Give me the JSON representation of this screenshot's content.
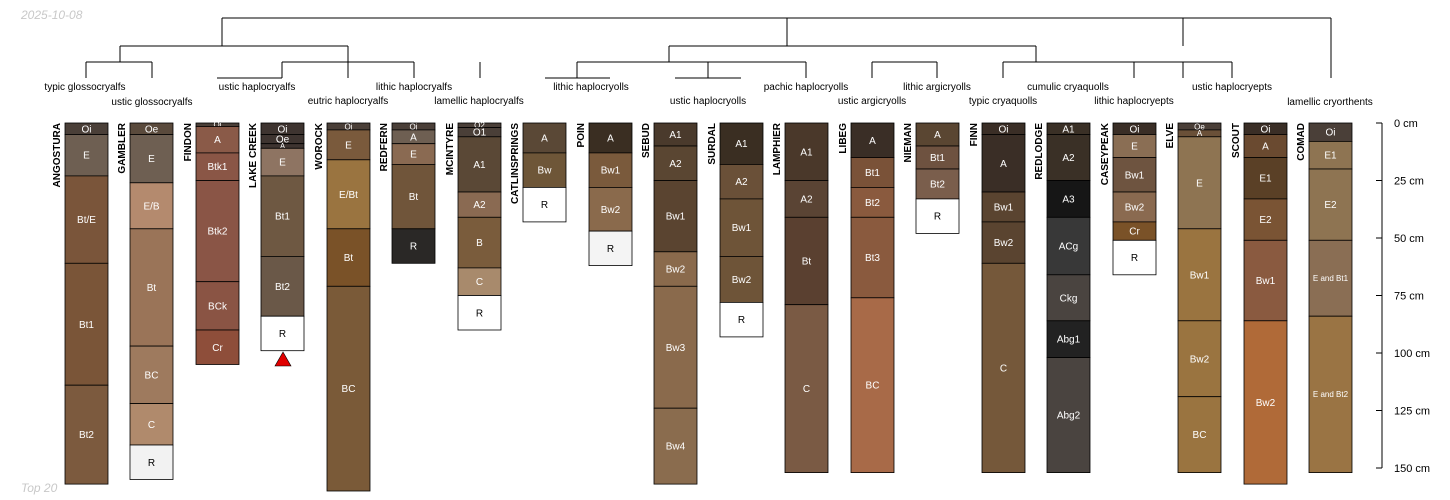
{
  "header": {
    "date": "2025-10-08"
  },
  "footer": {
    "caption": "Top 20"
  },
  "colors": {
    "line": "#000000",
    "marker": "#e00000"
  },
  "depth_axis": {
    "unit": "cm",
    "max": 150,
    "ticks": [
      {
        "value": 0,
        "label": "0 cm"
      },
      {
        "value": 25,
        "label": "25 cm"
      },
      {
        "value": 50,
        "label": "50 cm"
      },
      {
        "value": 75,
        "label": "75 cm"
      },
      {
        "value": 100,
        "label": "100 cm"
      },
      {
        "value": 125,
        "label": "125 cm"
      },
      {
        "value": 150,
        "label": "150 cm"
      }
    ]
  },
  "taxa": [
    {
      "label": "typic glossocryalfs"
    },
    {
      "label": "ustic glossocryalfs"
    },
    {
      "label": "ustic haplocryalfs"
    },
    {
      "label": "eutric haplocryalfs"
    },
    {
      "label": "lithic haplocryalfs"
    },
    {
      "label": "lamellic haplocryalfs"
    },
    {
      "label": "lithic haplocryolls"
    },
    {
      "label": "ustic haplocryolls"
    },
    {
      "label": "pachic haplocryolls"
    },
    {
      "label": "ustic argicryolls"
    },
    {
      "label": "lithic argicryolls"
    },
    {
      "label": "typic cryaquolls"
    },
    {
      "label": "cumulic cryaquolls"
    },
    {
      "label": "lithic haplocryepts"
    },
    {
      "label": "ustic haplocryepts"
    },
    {
      "label": "lamellic cryorthents"
    }
  ],
  "profiles": [
    {
      "name": "ANGOSTURA",
      "horizons": [
        {
          "name": "Oi",
          "top": 0,
          "bottom": 5,
          "color": "#4a3f38"
        },
        {
          "name": "E",
          "top": 5,
          "bottom": 23,
          "color": "#6e5f52"
        },
        {
          "name": "Bt/E",
          "top": 23,
          "bottom": 61,
          "color": "#7a553a"
        },
        {
          "name": "Bt1",
          "top": 61,
          "bottom": 114,
          "color": "#7a5538"
        },
        {
          "name": "Bt2",
          "top": 114,
          "bottom": 157,
          "color": "#7c5a3e"
        }
      ]
    },
    {
      "name": "GAMBLER",
      "horizons": [
        {
          "name": "Oe",
          "top": 0,
          "bottom": 5,
          "color": "#5a4a3c"
        },
        {
          "name": "E",
          "top": 5,
          "bottom": 26,
          "color": "#6e5f52"
        },
        {
          "name": "E/B",
          "top": 26,
          "bottom": 46,
          "color": "#b48a6e"
        },
        {
          "name": "Bt",
          "top": 46,
          "bottom": 97,
          "color": "#9a7458"
        },
        {
          "name": "BC",
          "top": 97,
          "bottom": 122,
          "color": "#9e7a5e"
        },
        {
          "name": "C",
          "top": 122,
          "bottom": 140,
          "color": "#b08a6c"
        },
        {
          "name": "R",
          "top": 140,
          "bottom": 155,
          "color": "#f2f2f2"
        }
      ]
    },
    {
      "name": "FINDON",
      "horizons": [
        {
          "name": "Oi",
          "top": 0,
          "bottom": 1.5,
          "color": "#4a3f38"
        },
        {
          "name": "A",
          "top": 1.5,
          "bottom": 13,
          "color": "#8a5a48"
        },
        {
          "name": "Btk1",
          "top": 13,
          "bottom": 25,
          "color": "#8a5646"
        },
        {
          "name": "Btk2",
          "top": 25,
          "bottom": 69,
          "color": "#8a5546"
        },
        {
          "name": "BCk",
          "top": 69,
          "bottom": 90,
          "color": "#8a5444"
        },
        {
          "name": "Cr",
          "top": 90,
          "bottom": 105,
          "color": "#8e4e3a"
        }
      ]
    },
    {
      "name": "LAKE CREEK",
      "horizons": [
        {
          "name": "Oi",
          "top": 0,
          "bottom": 5,
          "color": "#3e3430"
        },
        {
          "name": "Oe",
          "top": 5,
          "bottom": 9,
          "color": "#3e3430"
        },
        {
          "name": "A",
          "top": 9,
          "bottom": 11,
          "color": "#3e3430"
        },
        {
          "name": "E",
          "top": 11,
          "bottom": 23,
          "color": "#8e7462"
        },
        {
          "name": "Bt1",
          "top": 23,
          "bottom": 58,
          "color": "#6e5842"
        },
        {
          "name": "Bt2",
          "top": 58,
          "bottom": 84,
          "color": "#6a5848"
        },
        {
          "name": "R",
          "top": 84,
          "bottom": 99,
          "color": "#ffffff"
        }
      ]
    },
    {
      "name": "WOROCK",
      "horizons": [
        {
          "name": "Oi",
          "top": 0,
          "bottom": 3,
          "color": "#4a3f38"
        },
        {
          "name": "E",
          "top": 3,
          "bottom": 16,
          "color": "#7a5a3c"
        },
        {
          "name": "E/Bt",
          "top": 16,
          "bottom": 46,
          "color": "#9a7440"
        },
        {
          "name": "Bt",
          "top": 46,
          "bottom": 71,
          "color": "#7a5228"
        },
        {
          "name": "BC",
          "top": 71,
          "bottom": 160,
          "color": "#7a5a38"
        }
      ]
    },
    {
      "name": "REDFERN",
      "horizons": [
        {
          "name": "Oi",
          "top": 0,
          "bottom": 3,
          "color": "#4a3f38"
        },
        {
          "name": "A",
          "top": 3,
          "bottom": 9,
          "color": "#6e5f52"
        },
        {
          "name": "E",
          "top": 9,
          "bottom": 18,
          "color": "#8a6a52"
        },
        {
          "name": "Bt",
          "top": 18,
          "bottom": 46,
          "color": "#70553a"
        },
        {
          "name": "R",
          "top": 46,
          "bottom": 61,
          "color": "#2a2826"
        }
      ]
    },
    {
      "name": "MCINTYRE",
      "horizons": [
        {
          "name": "O2",
          "top": 0,
          "bottom": 2,
          "color": "#4a3f38"
        },
        {
          "name": "O1",
          "top": 2,
          "bottom": 6,
          "color": "#4a3f38"
        },
        {
          "name": "A1",
          "top": 6,
          "bottom": 30,
          "color": "#5a4836"
        },
        {
          "name": "A2",
          "top": 30,
          "bottom": 41,
          "color": "#8a6a52"
        },
        {
          "name": "B",
          "top": 41,
          "bottom": 63,
          "color": "#7a5c3c"
        },
        {
          "name": "C",
          "top": 63,
          "bottom": 75,
          "color": "#a88a6c"
        },
        {
          "name": "R",
          "top": 75,
          "bottom": 90,
          "color": "#ffffff"
        }
      ]
    },
    {
      "name": "CATLINSPRINGS",
      "horizons": [
        {
          "name": "A",
          "top": 0,
          "bottom": 13,
          "color": "#5a4836"
        },
        {
          "name": "Bw",
          "top": 13,
          "bottom": 28,
          "color": "#6e5638"
        },
        {
          "name": "R",
          "top": 28,
          "bottom": 43,
          "color": "#ffffff"
        }
      ]
    },
    {
      "name": "POIN",
      "horizons": [
        {
          "name": "A",
          "top": 0,
          "bottom": 13,
          "color": "#3a2e22"
        },
        {
          "name": "Bw1",
          "top": 13,
          "bottom": 28,
          "color": "#7a5a3c"
        },
        {
          "name": "Bw2",
          "top": 28,
          "bottom": 47,
          "color": "#8a6a4c"
        },
        {
          "name": "R",
          "top": 47,
          "bottom": 62,
          "color": "#f4f4f4"
        }
      ]
    },
    {
      "name": "SEBUD",
      "horizons": [
        {
          "name": "A1",
          "top": 0,
          "bottom": 10,
          "color": "#4a3a2c"
        },
        {
          "name": "A2",
          "top": 10,
          "bottom": 25,
          "color": "#5a4632"
        },
        {
          "name": "Bw1",
          "top": 25,
          "bottom": 56,
          "color": "#5a4430"
        },
        {
          "name": "Bw2",
          "top": 56,
          "bottom": 71,
          "color": "#8a6a4c"
        },
        {
          "name": "Bw3",
          "top": 71,
          "bottom": 124,
          "color": "#8a6a4c"
        },
        {
          "name": "Bw4",
          "top": 124,
          "bottom": 157,
          "color": "#8a6c4e"
        }
      ]
    },
    {
      "name": "SURDAL",
      "horizons": [
        {
          "name": "A1",
          "top": 0,
          "bottom": 18,
          "color": "#3a2e22"
        },
        {
          "name": "A2",
          "top": 18,
          "bottom": 33,
          "color": "#6a5038"
        },
        {
          "name": "Bw1",
          "top": 33,
          "bottom": 58,
          "color": "#6e5438"
        },
        {
          "name": "Bw2",
          "top": 58,
          "bottom": 78,
          "color": "#6e5438"
        },
        {
          "name": "R",
          "top": 78,
          "bottom": 93,
          "color": "#ffffff"
        }
      ]
    },
    {
      "name": "LAMPHIER",
      "horizons": [
        {
          "name": "A1",
          "top": 0,
          "bottom": 25,
          "color": "#4a382a"
        },
        {
          "name": "A2",
          "top": 25,
          "bottom": 41,
          "color": "#5a4434"
        },
        {
          "name": "Bt",
          "top": 41,
          "bottom": 79,
          "color": "#5a4030"
        },
        {
          "name": "C",
          "top": 79,
          "bottom": 152,
          "color": "#7a5a44"
        }
      ]
    },
    {
      "name": "LIBEG",
      "horizons": [
        {
          "name": "A",
          "top": 0,
          "bottom": 15,
          "color": "#3a2e26"
        },
        {
          "name": "Bt1",
          "top": 15,
          "bottom": 28,
          "color": "#7a5238"
        },
        {
          "name": "Bt2",
          "top": 28,
          "bottom": 41,
          "color": "#8a5a3e"
        },
        {
          "name": "Bt3",
          "top": 41,
          "bottom": 76,
          "color": "#8a5a3e"
        },
        {
          "name": "BC",
          "top": 76,
          "bottom": 152,
          "color": "#a86a48"
        }
      ]
    },
    {
      "name": "NIEMAN",
      "horizons": [
        {
          "name": "A",
          "top": 0,
          "bottom": 10,
          "color": "#5a4632"
        },
        {
          "name": "Bt1",
          "top": 10,
          "bottom": 20,
          "color": "#6e5240"
        },
        {
          "name": "Bt2",
          "top": 20,
          "bottom": 33,
          "color": "#7a5e4c"
        },
        {
          "name": "R",
          "top": 33,
          "bottom": 48,
          "color": "#ffffff"
        }
      ]
    },
    {
      "name": "FINN",
      "horizons": [
        {
          "name": "Oi",
          "top": 0,
          "bottom": 5,
          "color": "#3a2e26"
        },
        {
          "name": "A",
          "top": 5,
          "bottom": 30,
          "color": "#3a2e26"
        },
        {
          "name": "Bw1",
          "top": 30,
          "bottom": 43,
          "color": "#5a4430"
        },
        {
          "name": "Bw2",
          "top": 43,
          "bottom": 61,
          "color": "#5a4430"
        },
        {
          "name": "C",
          "top": 61,
          "bottom": 152,
          "color": "#75583a"
        }
      ]
    },
    {
      "name": "REDLODGE",
      "horizons": [
        {
          "name": "A1",
          "top": 0,
          "bottom": 5,
          "color": "#3a3026"
        },
        {
          "name": "A2",
          "top": 5,
          "bottom": 25,
          "color": "#3a3026"
        },
        {
          "name": "A3",
          "top": 25,
          "bottom": 41,
          "color": "#161616"
        },
        {
          "name": "ACg",
          "top": 41,
          "bottom": 66,
          "color": "#383838"
        },
        {
          "name": "Ckg",
          "top": 66,
          "bottom": 86,
          "color": "#4a4440"
        },
        {
          "name": "Abg1",
          "top": 86,
          "bottom": 102,
          "color": "#222222"
        },
        {
          "name": "Abg2",
          "top": 102,
          "bottom": 152,
          "color": "#4a4440"
        }
      ]
    },
    {
      "name": "CASEYPEAK",
      "horizons": [
        {
          "name": "Oi",
          "top": 0,
          "bottom": 5,
          "color": "#3a2e26"
        },
        {
          "name": "E",
          "top": 5,
          "bottom": 15,
          "color": "#8a6e54"
        },
        {
          "name": "Bw1",
          "top": 15,
          "bottom": 30,
          "color": "#6e5440"
        },
        {
          "name": "Bw2",
          "top": 30,
          "bottom": 43,
          "color": "#8a6a50"
        },
        {
          "name": "Cr",
          "top": 43,
          "bottom": 51,
          "color": "#7a5228"
        },
        {
          "name": "R",
          "top": 51,
          "bottom": 66,
          "color": "#ffffff"
        }
      ]
    },
    {
      "name": "ELVE",
      "horizons": [
        {
          "name": "Oe",
          "top": 0,
          "bottom": 3,
          "color": "#4a3f38"
        },
        {
          "name": "A",
          "top": 3,
          "bottom": 6,
          "color": "#6a5038"
        },
        {
          "name": "E",
          "top": 6,
          "bottom": 46,
          "color": "#8e7452"
        },
        {
          "name": "Bw1",
          "top": 46,
          "bottom": 86,
          "color": "#9a7440"
        },
        {
          "name": "Bw2",
          "top": 86,
          "bottom": 119,
          "color": "#9a7440"
        },
        {
          "name": "BC",
          "top": 119,
          "bottom": 152,
          "color": "#9a7440"
        }
      ]
    },
    {
      "name": "SCOUT",
      "horizons": [
        {
          "name": "Oi",
          "top": 0,
          "bottom": 5,
          "color": "#3a2e26"
        },
        {
          "name": "A",
          "top": 5,
          "bottom": 15,
          "color": "#6a4a30"
        },
        {
          "name": "E1",
          "top": 15,
          "bottom": 33,
          "color": "#5a4026"
        },
        {
          "name": "E2",
          "top": 33,
          "bottom": 51,
          "color": "#7a5434"
        },
        {
          "name": "Bw1",
          "top": 51,
          "bottom": 86,
          "color": "#8a5a40"
        },
        {
          "name": "Bw2",
          "top": 86,
          "bottom": 157,
          "color": "#b06a38"
        }
      ]
    },
    {
      "name": "COMAD",
      "horizons": [
        {
          "name": "Oi",
          "top": 0,
          "bottom": 8,
          "color": "#4a3f38"
        },
        {
          "name": "E1",
          "top": 8,
          "bottom": 20,
          "color": "#8e7452"
        },
        {
          "name": "E2",
          "top": 20,
          "bottom": 51,
          "color": "#8e7452"
        },
        {
          "name": "E and Bt1",
          "top": 51,
          "bottom": 84,
          "color": "#8a6e54"
        },
        {
          "name": "E and Bt2",
          "top": 84,
          "bottom": 152,
          "color": "#9a7444"
        }
      ]
    }
  ]
}
